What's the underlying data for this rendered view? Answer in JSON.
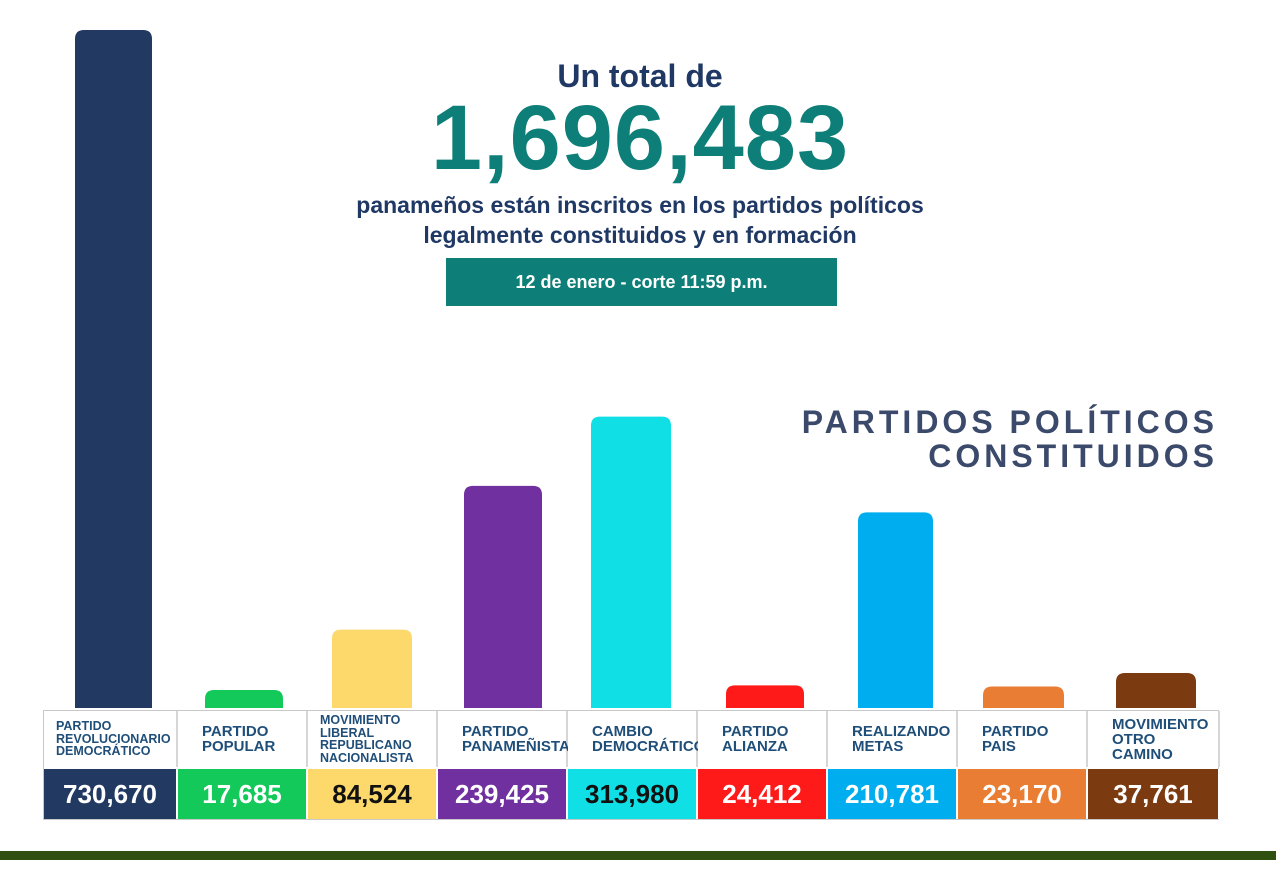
{
  "header": {
    "intro": "Un total de",
    "total": "1,696,483",
    "description_line1": "panameños están inscritos en los partidos políticos",
    "description_line2": "legalmente constituidos y en formación",
    "date": "12 de enero - corte 11:59 p.m."
  },
  "section": {
    "title_line1": "PARTIDOS POLÍTICOS",
    "title_line2": "CONSTITUIDOS"
  },
  "chart_data": {
    "type": "bar",
    "title": "PARTIDOS POLÍTICOS CONSTITUIDOS",
    "xlabel": "",
    "ylabel": "",
    "ylim": [
      0,
      730670
    ],
    "grid": false,
    "categories": [
      "PARTIDO REVOLUCIONARIO DEMOCRÁTICO",
      "PARTIDO POPULAR",
      "MOVIMIENTO LIBERAL REPUBLICANO NACIONALISTA",
      "PARTIDO PANAMEÑISTA",
      "CAMBIO DEMOCRÁTICO",
      "PARTIDO ALIANZA",
      "REALIZANDO METAS",
      "PARTIDO PAIS",
      "MOVIMIENTO OTRO CAMINO"
    ],
    "values": [
      730670,
      17685,
      84524,
      239425,
      313980,
      24412,
      210781,
      23170,
      37761
    ],
    "value_labels": [
      "730,670",
      "17,685",
      "84,524",
      "239,425",
      "313,980",
      "24,412",
      "210,781",
      "23,170",
      "37,761"
    ],
    "label_lines": [
      [
        "PARTIDO",
        "REVOLUCIONARIO",
        "DEMOCRÁTICO"
      ],
      [
        "PARTIDO",
        "POPULAR"
      ],
      [
        "MOVIMIENTO",
        "LIBERAL",
        "REPUBLICANO",
        "NACIONALISTA"
      ],
      [
        "PARTIDO",
        "PANAMEÑISTA"
      ],
      [
        "CAMBIO",
        "DEMOCRÁTICO"
      ],
      [
        "PARTIDO",
        "ALIANZA"
      ],
      [
        "REALIZANDO",
        "METAS"
      ],
      [
        "PARTIDO",
        "PAIS"
      ],
      [
        "MOVIMIENTO",
        "OTRO CAMINO"
      ]
    ],
    "colors": [
      "#223962",
      "#12c95a",
      "#fdd86a",
      "#7030a0",
      "#11dfe6",
      "#ff1a1a",
      "#00aeef",
      "#ea7d34",
      "#7b3a10"
    ],
    "value_text_colors": [
      "#ffffff",
      "#ffffff",
      "#111111",
      "#ffffff",
      "#111111",
      "#ffffff",
      "#ffffff",
      "#ffffff",
      "#ffffff"
    ]
  }
}
